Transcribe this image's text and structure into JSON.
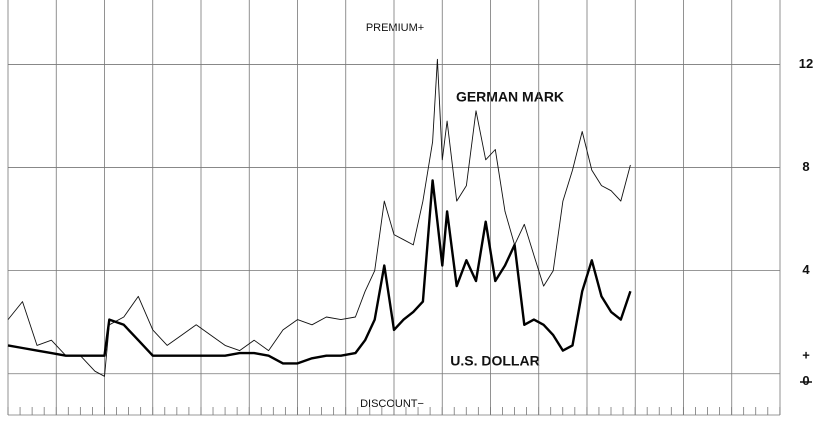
{
  "chart_data": {
    "type": "line",
    "annotations": [
      "PREMIUM+",
      "DISCOUNT−",
      "+"
    ],
    "x": [
      0,
      3,
      6,
      9,
      12,
      15,
      18,
      20,
      21,
      24,
      27,
      30,
      33,
      36,
      39,
      42,
      45,
      48,
      51,
      54,
      57,
      60,
      63,
      66,
      69,
      72,
      74,
      76,
      78,
      80,
      82,
      84,
      86,
      88,
      89,
      90,
      91,
      93,
      95,
      97,
      99,
      101,
      103,
      105,
      107,
      109,
      111,
      113,
      115,
      117,
      119,
      121,
      123,
      125,
      127,
      129
    ],
    "series": [
      {
        "name": "GERMAN MARK",
        "color": "#111111",
        "width": "thin",
        "values": [
          2.1,
          2.8,
          1.1,
          1.3,
          0.7,
          0.7,
          0.1,
          -0.1,
          1.9,
          2.2,
          3.0,
          1.7,
          1.1,
          1.5,
          1.9,
          1.5,
          1.1,
          0.9,
          1.3,
          0.9,
          1.7,
          2.1,
          1.9,
          2.2,
          2.1,
          2.2,
          3.2,
          4.0,
          6.7,
          5.4,
          5.2,
          5.0,
          6.7,
          9.0,
          12.2,
          8.3,
          9.8,
          6.7,
          7.3,
          10.2,
          8.3,
          8.7,
          6.3,
          5.0,
          5.8,
          4.6,
          3.4,
          4.0,
          6.7,
          7.9,
          9.4,
          7.9,
          7.3,
          7.1,
          6.7,
          8.1
        ]
      },
      {
        "name": "U.S. DOLLAR",
        "color": "#000000",
        "width": "thick",
        "values": [
          1.1,
          1.0,
          0.9,
          0.8,
          0.7,
          0.7,
          0.7,
          0.7,
          2.1,
          1.9,
          1.3,
          0.7,
          0.7,
          0.7,
          0.7,
          0.7,
          0.7,
          0.8,
          0.8,
          0.7,
          0.4,
          0.4,
          0.6,
          0.7,
          0.7,
          0.8,
          1.3,
          2.1,
          4.2,
          1.7,
          2.1,
          2.4,
          2.8,
          7.5,
          5.9,
          4.2,
          6.3,
          3.4,
          4.4,
          3.6,
          5.9,
          3.6,
          4.2,
          5.0,
          1.9,
          2.1,
          1.9,
          1.5,
          0.9,
          1.1,
          3.2,
          4.4,
          3.0,
          2.4,
          2.1,
          3.2
        ]
      }
    ],
    "xlim": [
      0,
      160
    ],
    "xticks": [
      0,
      10,
      20,
      30,
      40,
      50,
      60,
      70,
      80,
      90,
      100,
      110,
      120,
      130,
      140,
      150,
      160
    ],
    "ylim": [
      -1.6,
      14.5
    ],
    "yticks": [
      0,
      4,
      8,
      12
    ],
    "grid": true
  }
}
